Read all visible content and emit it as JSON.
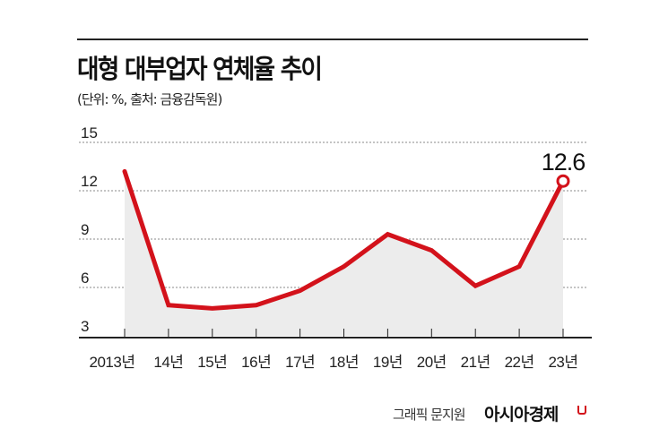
{
  "header": {
    "title": "대형 대부업자 연체율 추이",
    "subtitle": "(단위: %, 출처: 금융감독원)"
  },
  "footer": {
    "credit": "그래픽 문지원",
    "brand": "아시아경제"
  },
  "colors": {
    "line": "#d3121b",
    "area": "#ececec",
    "grid": "#888888",
    "axis": "#222222"
  },
  "chart_data": {
    "type": "line",
    "title": "대형 대부업자 연체율 추이",
    "subtitle": "(단위: %, 출처: 금융감독원)",
    "xlabel": "",
    "ylabel": "%",
    "categories": [
      "2013년",
      "14년",
      "15년",
      "16년",
      "17년",
      "18년",
      "19년",
      "20년",
      "21년",
      "22년",
      "23년"
    ],
    "series": [
      {
        "name": "대형 대부업자 연체율",
        "values": [
          13.2,
          4.9,
          4.7,
          4.9,
          5.8,
          7.3,
          9.3,
          8.3,
          6.1,
          7.3,
          12.6
        ]
      }
    ],
    "yticks": [
      3,
      6,
      9,
      12,
      15
    ],
    "ylim": [
      3,
      15
    ],
    "grid": true,
    "grid_style": "dotted horizontal",
    "area_fill": true,
    "annotations": [
      {
        "category": "23년",
        "value": 12.6,
        "label": "12.6",
        "marker": "open-circle"
      }
    ],
    "legend": null
  }
}
